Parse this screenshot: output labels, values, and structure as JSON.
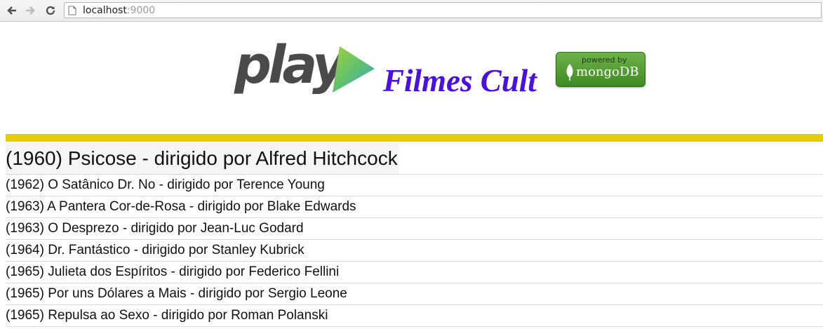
{
  "browser": {
    "url_host": "localhost",
    "url_port": ":9000"
  },
  "header": {
    "logo_text": "play",
    "site_title": "Filmes Cult",
    "badge_powered": "powered by",
    "badge_name": "mongoDB"
  },
  "colors": {
    "title": "#4a0ee6",
    "divider": "#e6cc00",
    "badge": "#4f9a2c"
  },
  "films": {
    "featured": "(1960) Psicose - dirigido por Alfred Hitchcock",
    "items": [
      "(1962) O Satânico Dr. No - dirigido por Terence Young",
      "(1963) A Pantera Cor-de-Rosa - dirigido por Blake Edwards",
      "(1963) O Desprezo - dirigido por Jean-Luc Godard",
      "(1964) Dr. Fantástico - dirigido por Stanley Kubrick",
      "(1965) Julieta dos Espíritos - dirigido por Federico Fellini",
      "(1965) Por uns Dólares a Mais - dirigido por Sergio Leone",
      "(1965) Repulsa ao Sexo - dirigido por Roman Polanski"
    ]
  }
}
